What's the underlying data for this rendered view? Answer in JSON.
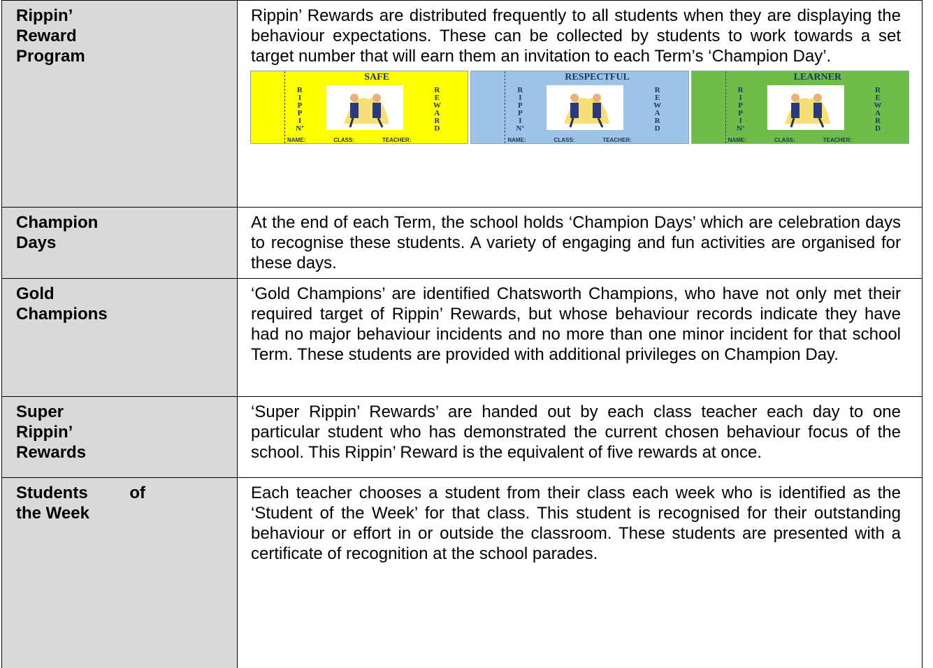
{
  "rows": [
    {
      "label_lines": [
        "Rippin’",
        "Reward",
        "Program"
      ],
      "text": "Rippin’ Rewards are distributed frequently to all students when they are displaying the behaviour expectations. These can be collected by students to work towards a set target number that will earn them an invitation to each Term’s ‘Champion Day’.",
      "cards": [
        {
          "title": "SAFE",
          "left": [
            "R",
            "I",
            "P",
            "P",
            "I",
            "N’"
          ],
          "right": [
            "R",
            "E",
            "W",
            "A",
            "R",
            "D"
          ],
          "footer": [
            "NAME:",
            "CLASS:",
            "TEACHER:"
          ]
        },
        {
          "title": "RESPECTFUL",
          "left": [
            "R",
            "I",
            "P",
            "P",
            "I",
            "N’"
          ],
          "right": [
            "R",
            "E",
            "W",
            "A",
            "R",
            "D"
          ],
          "footer": [
            "NAME:",
            "CLASS:",
            "TEACHER:"
          ]
        },
        {
          "title": "LEARNER",
          "left": [
            "R",
            "I",
            "P",
            "P",
            "I",
            "N’"
          ],
          "right": [
            "R",
            "E",
            "W",
            "A",
            "R",
            "D"
          ],
          "footer": [
            "NAME:",
            "CLASS:",
            "TEACHER:"
          ]
        }
      ]
    },
    {
      "label_lines": [
        "Champion",
        "Days"
      ],
      "text": "At the end of each Term, the school holds ‘Champion Days’ which are celebration days to recognise these students. A variety of engaging and fun activities are organised for these days."
    },
    {
      "label_lines": [
        "Gold",
        "Champions"
      ],
      "text": "‘Gold Champions’ are identified Chatsworth Champions, who have not only met their required target of Rippin’ Rewards, but whose behaviour records indicate they have had no major behaviour incidents and no more than one minor incident for that school Term. These students are provided with additional privileges on Champion Day."
    },
    {
      "label_lines": [
        "Super",
        "Rippin’",
        "Rewards"
      ],
      "text": "‘Super Rippin’ Rewards’ are handed out by each class teacher each day to one particular student who has demonstrated the current chosen behaviour focus of the school. This Rippin’ Reward is the equivalent of five rewards at once."
    },
    {
      "label_lines": [
        "Students of",
        "the Week"
      ],
      "text": "Each teacher chooses a student from their class each week who is identified as the ‘Student of the Week’ for that class. This student is recognised for their outstanding behaviour or effort in or outside the classroom. These students are presented with a certificate of recognition at the school parades."
    }
  ]
}
